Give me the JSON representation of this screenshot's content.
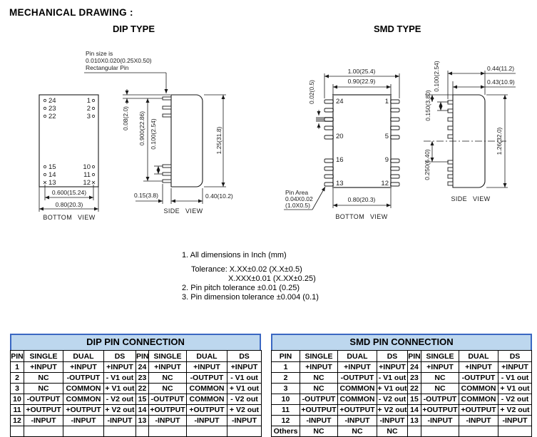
{
  "doc": {
    "title": "MECHANICAL DRAWING :"
  },
  "colors": {
    "table_header_bg": "#bdd7ee",
    "table_title_border": "#3a67c2",
    "drawing_stroke": "#1a1a1a",
    "highlight_pin_gray": "#999999"
  },
  "dip": {
    "heading": "DIP TYPE",
    "pin_note": [
      "Pin size is",
      "0.010X0.020(0.25X0.50)",
      "Rectangular Pin"
    ],
    "bottom": {
      "label": "BOTTOM VIEW",
      "left_top": [
        "24",
        "23",
        "22"
      ],
      "right_top": [
        "1",
        "2",
        "3"
      ],
      "left_bottom": [
        "15",
        "14",
        "13"
      ],
      "right_bottom": [
        "10",
        "11",
        "12"
      ],
      "dim_pin_span": "0.600(15.24)",
      "dim_width": "0.80(20.3)"
    },
    "side": {
      "label": "SIDE VIEW",
      "dim_top_gap": "0.08(2.0)",
      "dim_pin_span": "0.900(22.86)",
      "dim_pitch": "0.100(2.54)",
      "dim_pin_len": "0.15(3.8)",
      "dim_height": "1.25(31.8)",
      "dim_depth": "0.40(10.2)"
    }
  },
  "smd": {
    "heading": "SMD TYPE",
    "bottom": {
      "label": "BOTTOM VIEW",
      "dim_overall": "1.00(25.4)",
      "dim_body": "0.90(22.9)",
      "dim_pin_thick": "0.02(0.5)",
      "dim_width": "0.80(20.3)",
      "left_labels": [
        "24",
        "20",
        "16",
        "13"
      ],
      "right_labels": [
        "1",
        "5",
        "9",
        "12"
      ],
      "pin_note": [
        "Pin Area",
        "0.04X0.02",
        "(1.0X0.5)"
      ]
    },
    "side": {
      "label": "SIDE VIEW",
      "dim_overall": "0.44(11.2)",
      "dim_body": "0.43(10.9)",
      "dim_pitch": "0.100(2.54)",
      "dim_top_gap": "0.150(3.80)",
      "dim_bottom_gap": "0.250(6.40)",
      "dim_height": "1.26(32.0)"
    }
  },
  "notes": [
    "1. All dimensions in Inch (mm)",
    "Tolerance: X.XX±0.02 (X.X±0.5)",
    "X.XXX±0.01 (X.XX±0.25)",
    "2. Pin pitch tolerance ±0.01 (0.25)",
    "3. Pin dimension tolerance ±0.004 (0.1)"
  ],
  "tables": [
    {
      "title": "DIP PIN CONNECTION",
      "headers": [
        "PIN",
        "SINGLE",
        "DUAL",
        "DS",
        "PIN",
        "SINGLE",
        "DUAL",
        "DS"
      ],
      "rows": [
        [
          "1",
          "+INPUT",
          "+INPUT",
          "+INPUT",
          "24",
          "+INPUT",
          "+INPUT",
          "+INPUT"
        ],
        [
          "2",
          "NC",
          "-OUTPUT",
          "- V1 out",
          "23",
          "NC",
          "-OUTPUT",
          "- V1 out"
        ],
        [
          "3",
          "NC",
          "COMMON",
          "+ V1 out",
          "22",
          "NC",
          "COMMON",
          "+ V1 out"
        ],
        [
          "10",
          "-OUTPUT",
          "COMMON",
          "- V2 out",
          "15",
          "-OUTPUT",
          "COMMON",
          "- V2 out"
        ],
        [
          "11",
          "+OUTPUT",
          "+OUTPUT",
          "+ V2 out",
          "14",
          "+OUTPUT",
          "+OUTPUT",
          "+ V2 out"
        ],
        [
          "12",
          "-INPUT",
          "-INPUT",
          "-INPUT",
          "13",
          "-INPUT",
          "-INPUT",
          "-INPUT"
        ],
        [
          "",
          "",
          "",
          "",
          "",
          "",
          "",
          ""
        ]
      ]
    },
    {
      "title": "SMD PIN CONNECTION",
      "headers": [
        "PIN",
        "SINGLE",
        "DUAL",
        "DS",
        "PIN",
        "SINGLE",
        "DUAL",
        "DS"
      ],
      "rows": [
        [
          "1",
          "+INPUT",
          "+INPUT",
          "+INPUT",
          "24",
          "+INPUT",
          "+INPUT",
          "+INPUT"
        ],
        [
          "2",
          "NC",
          "-OUTPUT",
          "- V1 out",
          "23",
          "NC",
          "-OUTPUT",
          "- V1 out"
        ],
        [
          "3",
          "NC",
          "COMMON",
          "+ V1 out",
          "22",
          "NC",
          "COMMON",
          "+ V1 out"
        ],
        [
          "10",
          "-OUTPUT",
          "COMMON",
          "- V2 out",
          "15",
          "-OUTPUT",
          "COMMON",
          "- V2 out"
        ],
        [
          "11",
          "+OUTPUT",
          "+OUTPUT",
          "+ V2 out",
          "14",
          "+OUTPUT",
          "+OUTPUT",
          "+ V2 out"
        ],
        [
          "12",
          "-INPUT",
          "-INPUT",
          "-INPUT",
          "13",
          "-INPUT",
          "-INPUT",
          "-INPUT"
        ],
        [
          "Others",
          "NC",
          "NC",
          "NC",
          "",
          "",
          "",
          ""
        ]
      ]
    }
  ]
}
